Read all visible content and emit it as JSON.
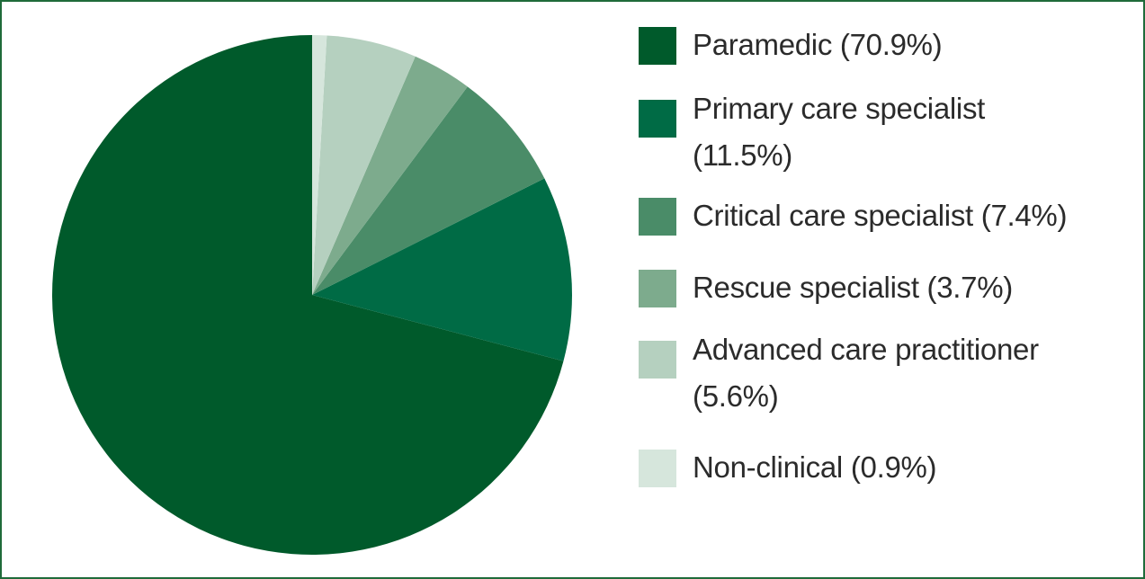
{
  "chart_data": {
    "type": "pie",
    "title": "",
    "slices": [
      {
        "label": "Paramedic (70.9%)",
        "value": 70.9,
        "color": "#005a2b"
      },
      {
        "label": "Primary care specialist (11.5%)",
        "value": 11.5,
        "color": "#006b45"
      },
      {
        "label": "Critical care specialist (7.4%)",
        "value": 7.4,
        "color": "#4a8c68"
      },
      {
        "label": "Rescue specialist (3.7%)",
        "value": 3.7,
        "color": "#7dab8d"
      },
      {
        "label": "Advanced care practitioner (5.6%)",
        "value": 5.6,
        "color": "#b5d0bf"
      },
      {
        "label": "Non-clinical (0.9%)",
        "value": 0.9,
        "color": "#d6e6dc"
      }
    ],
    "start_angle": "12 o'clock",
    "direction": "clockwise",
    "legend_position": "right"
  },
  "legend": {
    "items": [
      {
        "lines": [
          "Paramedic (70.9%)"
        ],
        "color": "#005a2b"
      },
      {
        "lines": [
          "Primary care specialist",
          "(11.5%)"
        ],
        "color": "#006b45"
      },
      {
        "lines": [
          "Critical care specialist (7.4%)"
        ],
        "color": "#4a8c68"
      },
      {
        "lines": [
          "Rescue specialist (3.7%)"
        ],
        "color": "#7dab8d"
      },
      {
        "lines": [
          "Advanced care practitioner",
          "(5.6%)"
        ],
        "color": "#b5d0bf"
      },
      {
        "lines": [
          "Non-clinical (0.9%)"
        ],
        "color": "#d6e6dc"
      }
    ]
  },
  "frame_color": "#1f6b3a"
}
